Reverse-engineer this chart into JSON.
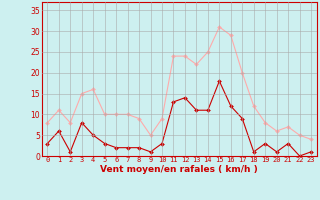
{
  "hours": [
    0,
    1,
    2,
    3,
    4,
    5,
    6,
    7,
    8,
    9,
    10,
    11,
    12,
    13,
    14,
    15,
    16,
    17,
    18,
    19,
    20,
    21,
    22,
    23
  ],
  "avg_wind": [
    3,
    6,
    1,
    8,
    5,
    3,
    2,
    2,
    2,
    1,
    3,
    13,
    14,
    11,
    11,
    18,
    12,
    9,
    1,
    3,
    1,
    3,
    0,
    1
  ],
  "gust_wind": [
    8,
    11,
    8,
    15,
    16,
    10,
    10,
    10,
    9,
    5,
    9,
    24,
    24,
    22,
    25,
    31,
    29,
    20,
    12,
    8,
    6,
    7,
    5,
    4
  ],
  "xlabel": "Vent moyen/en rafales ( km/h )",
  "ylim": [
    0,
    37
  ],
  "xlim": [
    -0.5,
    23.5
  ],
  "yticks": [
    0,
    5,
    10,
    15,
    20,
    25,
    30,
    35
  ],
  "bg_color": "#cdf0f0",
  "grid_color": "#aaaaaa",
  "avg_color": "#cc0000",
  "gust_color": "#ffaaaa",
  "xlabel_color": "#cc0000",
  "tick_color": "#cc0000",
  "spine_color": "#cc0000"
}
